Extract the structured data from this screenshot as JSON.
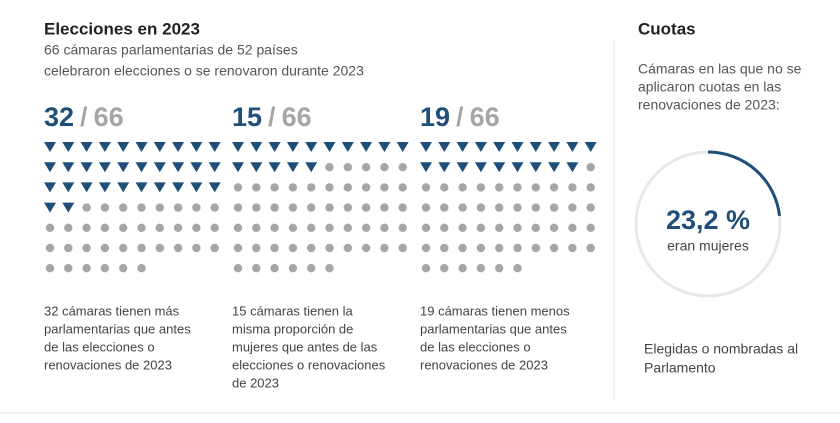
{
  "header": {
    "title": "Elecciones en 2023",
    "subtitle": [
      "66 cámaras parlamentarias de 52 países",
      "celebraron elecciones o se renovaron durante 2023"
    ]
  },
  "separator": "/",
  "panels": [
    {
      "count": 32,
      "total": 66,
      "description": [
        "32 cámaras tienen más",
        "parlamentarias que antes",
        "de las elecciones o",
        "renovaciones de 2023"
      ]
    },
    {
      "count": 15,
      "total": 66,
      "description": [
        "15 cámaras tienen la",
        "misma proporción de",
        "mujeres que antes de las",
        "elecciones o renovaciones",
        "de 2023"
      ]
    },
    {
      "count": 19,
      "total": 66,
      "description": [
        "19 cámaras tienen menos",
        "parlamentarias que antes",
        "de las elecciones o",
        "renovaciones de 2023"
      ]
    }
  ],
  "quotas": {
    "title": "Cuotas",
    "description": [
      "Cámaras en las que no se",
      "aplicaron cuotas en las",
      "renovaciones de 2023:"
    ],
    "percent": {
      "value": 23.2,
      "label": "23,2 %"
    },
    "percent_caption": "eran mujeres",
    "footer": [
      "Elegidas o nombradas al",
      "Parlamento"
    ]
  }
}
